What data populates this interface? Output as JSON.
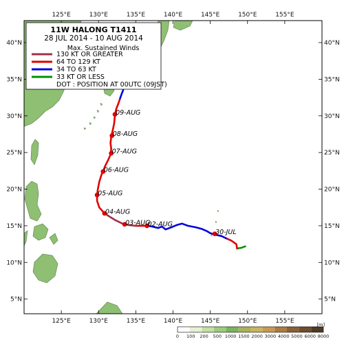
{
  "map": {
    "lon_range": [
      120,
      160
    ],
    "lat_range": [
      3,
      43
    ],
    "lon_ticks": [
      "125°E",
      "130°E",
      "135°E",
      "140°E",
      "145°E",
      "150°E",
      "155°E"
    ],
    "lon_values": [
      125,
      130,
      135,
      140,
      145,
      150,
      155
    ],
    "lat_ticks": [
      "40°N",
      "35°N",
      "30°N",
      "25°N",
      "20°N",
      "15°N",
      "10°N",
      "5°N"
    ],
    "lat_values": [
      40,
      35,
      30,
      25,
      20,
      15,
      10,
      5
    ],
    "land_color": "#8fbf72",
    "sea_color": "#ffffff"
  },
  "legend": {
    "title": "11W  HALONG  T1411",
    "period": "28 JUL 2014 - 10 AUG 2014",
    "heading": "Max. Sustained Winds",
    "items": [
      {
        "label": "130 KT OR GREATER",
        "color": "#a0304a"
      },
      {
        "label": "64 TO 129 KT",
        "color": "#e00000"
      },
      {
        "label": "34 TO 63 KT",
        "color": "#0000e0"
      },
      {
        "label": "33 KT OR LESS",
        "color": "#009000"
      }
    ],
    "dot_note": "DOT : POSITION AT 00UTC (09JST)"
  },
  "track": {
    "segments": [
      {
        "category": "33 KT OR LESS",
        "color": "#009000",
        "points": [
          [
            149.7,
            12.2
          ],
          [
            149.2,
            12.0
          ],
          [
            148.6,
            11.9
          ]
        ]
      },
      {
        "category": "64 TO 129 KT",
        "color": "#e00000",
        "points": [
          [
            148.6,
            11.9
          ],
          [
            148.5,
            12.5
          ],
          [
            147.8,
            13.0
          ],
          [
            147.1,
            13.3
          ]
        ]
      },
      {
        "category": "34 TO 63 KT",
        "color": "#0000e0",
        "points": [
          [
            147.1,
            13.3
          ],
          [
            146.5,
            13.6
          ],
          [
            145.6,
            13.8
          ],
          [
            145.0,
            14.0
          ],
          [
            144.5,
            14.3
          ],
          [
            143.8,
            14.6
          ],
          [
            143.0,
            14.8
          ],
          [
            142.0,
            15.0
          ],
          [
            141.2,
            15.3
          ],
          [
            140.5,
            15.1
          ],
          [
            139.8,
            14.8
          ],
          [
            139.0,
            14.5
          ],
          [
            138.5,
            14.9
          ],
          [
            138.0,
            14.7
          ],
          [
            137.2,
            14.9
          ],
          [
            136.5,
            15.0
          ]
        ]
      },
      {
        "category": "64 TO 129 KT",
        "color": "#e00000",
        "points": [
          [
            136.5,
            15.0
          ],
          [
            135.8,
            15.0
          ],
          [
            135.0,
            15.0
          ]
        ]
      },
      {
        "category": "130 KT OR GREATER",
        "color": "#a0304a",
        "points": [
          [
            135.0,
            15.0
          ],
          [
            134.0,
            15.1
          ],
          [
            133.2,
            15.3
          ],
          [
            132.2,
            15.8
          ],
          [
            131.4,
            16.3
          ],
          [
            130.8,
            16.7
          ]
        ]
      },
      {
        "category": "64 TO 129 KT",
        "color": "#e00000",
        "points": [
          [
            130.8,
            16.7
          ],
          [
            130.1,
            17.5
          ],
          [
            129.8,
            18.4
          ],
          [
            129.8,
            19.2
          ],
          [
            129.9,
            20.0
          ],
          [
            130.1,
            21.0
          ],
          [
            130.4,
            22.0
          ],
          [
            130.6,
            22.4
          ],
          [
            130.9,
            23.2
          ],
          [
            131.3,
            24.0
          ],
          [
            131.6,
            24.7
          ],
          [
            131.7,
            25.5
          ],
          [
            131.6,
            26.3
          ],
          [
            131.7,
            27.2
          ],
          [
            131.9,
            28.0
          ],
          [
            132.1,
            29.0
          ],
          [
            132.2,
            30.2
          ],
          [
            132.4,
            31.0
          ],
          [
            132.7,
            31.8
          ],
          [
            132.9,
            32.4
          ]
        ]
      },
      {
        "category": "34 TO 63 KT",
        "color": "#0000e0",
        "points": [
          [
            132.9,
            32.4
          ],
          [
            133.1,
            33.0
          ],
          [
            133.3,
            33.5
          ]
        ]
      }
    ],
    "dots": [
      {
        "label": "30-JUL",
        "lon": 145.6,
        "lat": 13.9
      },
      {
        "label": "02-AUG",
        "lon": 136.5,
        "lat": 15.0
      },
      {
        "label": "03-AUG",
        "lon": 133.5,
        "lat": 15.2
      },
      {
        "label": "04-AUG",
        "lon": 130.8,
        "lat": 16.7
      },
      {
        "label": "05-AUG",
        "lon": 129.8,
        "lat": 19.2
      },
      {
        "label": "06-AUG",
        "lon": 130.6,
        "lat": 22.4
      },
      {
        "label": "07-AUG",
        "lon": 131.7,
        "lat": 24.9
      },
      {
        "label": "08-AUG",
        "lon": 131.8,
        "lat": 27.3
      },
      {
        "label": "09-AUG",
        "lon": 132.2,
        "lat": 30.2
      }
    ]
  },
  "colorbar": {
    "unit": "[m]",
    "labels": [
      "0",
      "100",
      "200",
      "500",
      "1000",
      "1500",
      "2000",
      "3000",
      "4000",
      "5000",
      "6000",
      "8000"
    ],
    "colors": [
      "#ffffff",
      "#e6f1d3",
      "#c4e0a2",
      "#9ccc79",
      "#7ab45c",
      "#a8b25e",
      "#c9b35d",
      "#c89a4f",
      "#ab7c41",
      "#8a6236",
      "#6d4e2e",
      "#4f3a24"
    ]
  }
}
